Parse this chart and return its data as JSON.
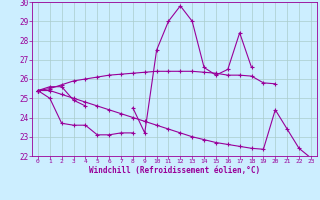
{
  "x": [
    0,
    1,
    2,
    3,
    4,
    5,
    6,
    7,
    8,
    9,
    10,
    11,
    12,
    13,
    14,
    15,
    16,
    17,
    18,
    19,
    20,
    21,
    22,
    23
  ],
  "line1": [
    25.4,
    25.6,
    25.6,
    24.9,
    24.6,
    null,
    null,
    null,
    null,
    null,
    null,
    null,
    null,
    null,
    null,
    null,
    null,
    null,
    null,
    null,
    null,
    null,
    null,
    null
  ],
  "line2": [
    25.4,
    25.0,
    23.7,
    23.6,
    23.6,
    23.1,
    23.1,
    23.2,
    23.2,
    null,
    null,
    null,
    null,
    null,
    null,
    null,
    null,
    null,
    null,
    null,
    null,
    null,
    null,
    null
  ],
  "line3": [
    25.4,
    null,
    null,
    null,
    null,
    null,
    null,
    null,
    24.5,
    23.2,
    27.5,
    29.0,
    29.8,
    29.0,
    26.6,
    26.2,
    26.5,
    28.4,
    26.6,
    null,
    null,
    null,
    null,
    null
  ],
  "line4": [
    25.4,
    25.5,
    25.7,
    25.9,
    26.0,
    26.1,
    26.2,
    26.25,
    26.3,
    26.35,
    26.4,
    26.4,
    26.4,
    26.4,
    26.35,
    26.3,
    26.2,
    26.2,
    26.15,
    25.8,
    25.75,
    null,
    null,
    null
  ],
  "line5": [
    25.4,
    25.4,
    25.2,
    25.0,
    24.8,
    24.6,
    24.4,
    24.2,
    24.0,
    23.8,
    23.6,
    23.4,
    23.2,
    23.0,
    22.85,
    22.7,
    22.6,
    22.5,
    22.4,
    22.35,
    24.4,
    23.4,
    22.4,
    21.9
  ],
  "color": "#990099",
  "bg_color": "#cceeff",
  "grid_color": "#aacccc",
  "ylim": [
    22,
    30
  ],
  "xlim": [
    -0.5,
    23.5
  ],
  "yticks": [
    22,
    23,
    24,
    25,
    26,
    27,
    28,
    29,
    30
  ],
  "xticks": [
    0,
    1,
    2,
    3,
    4,
    5,
    6,
    7,
    8,
    9,
    10,
    11,
    12,
    13,
    14,
    15,
    16,
    17,
    18,
    19,
    20,
    21,
    22,
    23
  ],
  "xlabel": "Windchill (Refroidissement éolien,°C)"
}
